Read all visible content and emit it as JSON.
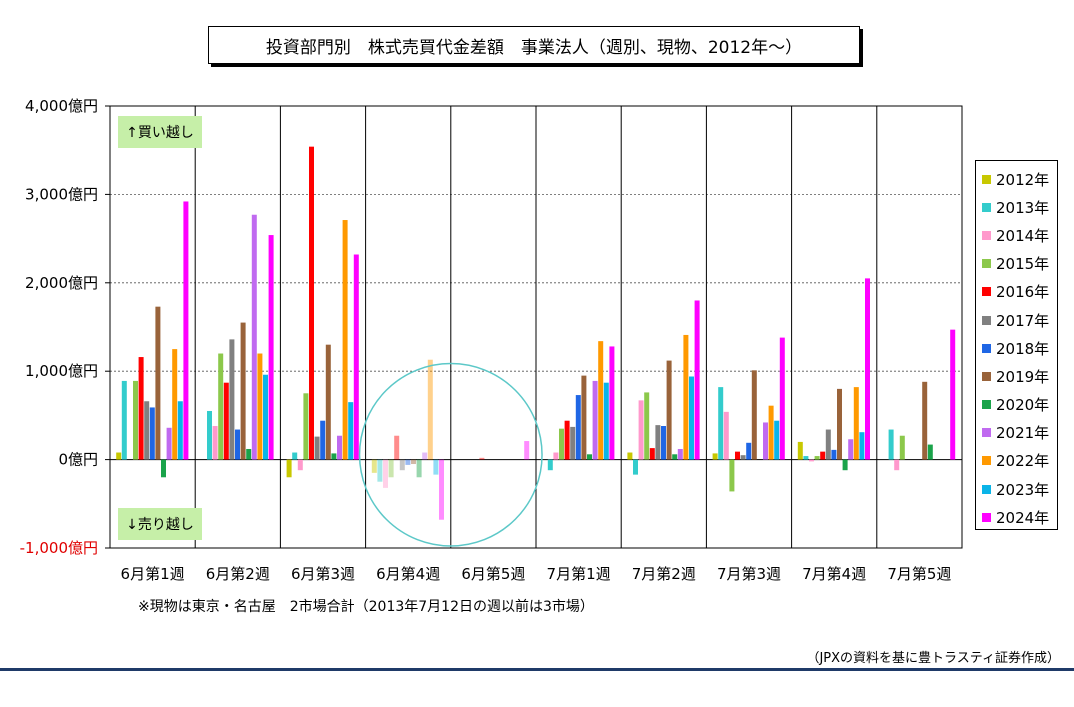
{
  "title": "投資部門別　株式売買代金差額　事業法人（週別、現物、2012年～）",
  "footnote": "※現物は東京・名古屋　2市場合計（2013年7月12日の週以前は3市場）",
  "source": "（JPXの資料を基に豊トラスティ証券作成）",
  "annotations": {
    "buy": "↑買い越し",
    "sell": "↓売り越し"
  },
  "chart_data": {
    "type": "bar",
    "categories": [
      "6月第1週",
      "6月第2週",
      "6月第3週",
      "6月第4週",
      "6月第5週",
      "7月第1週",
      "7月第2週",
      "7月第3週",
      "7月第4週",
      "7月第5週"
    ],
    "ylim": [
      -1000,
      4000
    ],
    "yticks": [
      {
        "value": 4000,
        "label": "4,000億円"
      },
      {
        "value": 3000,
        "label": "3,000億円"
      },
      {
        "value": 2000,
        "label": "2,000億円"
      },
      {
        "value": 1000,
        "label": "1,000億円"
      },
      {
        "value": 0,
        "label": "0億円"
      },
      {
        "value": -1000,
        "label": "-1,000億円"
      }
    ],
    "grid": true,
    "legend_position": "right",
    "highlight": {
      "shape": "circle",
      "around": [
        "6月第4週",
        "6月第5週"
      ],
      "faded": true,
      "color": "#5cc8c8"
    },
    "series": [
      {
        "name": "2012年",
        "color": "#c8c800",
        "values": [
          80,
          null,
          -200,
          -150,
          null,
          null,
          80,
          70,
          200,
          null
        ]
      },
      {
        "name": "2013年",
        "color": "#33cccc",
        "values": [
          890,
          550,
          80,
          -250,
          null,
          -120,
          -170,
          820,
          40,
          340
        ]
      },
      {
        "name": "2014年",
        "color": "#ff99cc",
        "values": [
          null,
          380,
          -120,
          -320,
          null,
          80,
          670,
          540,
          -20,
          -120
        ]
      },
      {
        "name": "2015年",
        "color": "#8cc84b",
        "values": [
          890,
          1200,
          750,
          -200,
          null,
          350,
          760,
          -360,
          40,
          270
        ]
      },
      {
        "name": "2016年",
        "color": "#ff0000",
        "values": [
          1160,
          870,
          3540,
          270,
          20,
          440,
          130,
          90,
          90,
          null
        ]
      },
      {
        "name": "2017年",
        "color": "#808080",
        "values": [
          660,
          1360,
          260,
          -120,
          null,
          370,
          390,
          50,
          340,
          null
        ]
      },
      {
        "name": "2018年",
        "color": "#1f66e5",
        "values": [
          590,
          340,
          440,
          -60,
          null,
          730,
          380,
          190,
          110,
          null
        ]
      },
      {
        "name": "2019年",
        "color": "#99633a",
        "values": [
          1730,
          1550,
          1300,
          -50,
          null,
          950,
          1120,
          1010,
          800,
          880
        ]
      },
      {
        "name": "2020年",
        "color": "#1aa34a",
        "values": [
          -200,
          120,
          70,
          -200,
          null,
          60,
          60,
          null,
          -120,
          170
        ]
      },
      {
        "name": "2021年",
        "color": "#c06af0",
        "values": [
          360,
          2770,
          270,
          80,
          null,
          890,
          120,
          420,
          230,
          null
        ]
      },
      {
        "name": "2022年",
        "color": "#ff9900",
        "values": [
          1250,
          1200,
          2710,
          1130,
          null,
          1340,
          1410,
          610,
          820,
          null
        ]
      },
      {
        "name": "2023年",
        "color": "#0ab4e8",
        "values": [
          660,
          960,
          650,
          -170,
          null,
          870,
          940,
          440,
          310,
          null
        ]
      },
      {
        "name": "2024年",
        "color": "#ff00ff",
        "values": [
          2920,
          2540,
          2320,
          -680,
          210,
          1280,
          1800,
          1380,
          2050,
          1470
        ]
      }
    ]
  }
}
